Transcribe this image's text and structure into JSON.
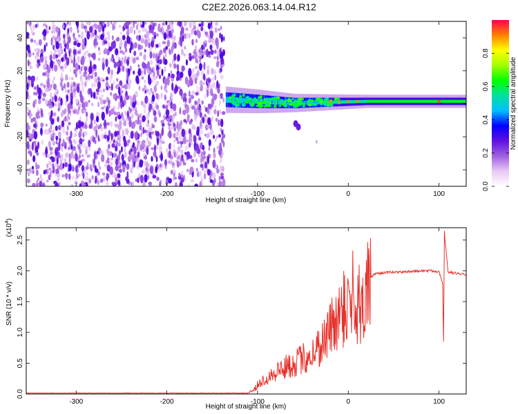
{
  "title": "C2E2.2026.063.14.04.R12",
  "chart_data": [
    {
      "type": "heatmap",
      "name": "spectrogram",
      "title": "C2E2.2026.063.14.04.R12",
      "xlabel": "Height of straight line (km)",
      "ylabel": "Frequency (Hz)",
      "xlim": [
        -355,
        130
      ],
      "ylim": [
        -50,
        50
      ],
      "xticks": [
        -300,
        -200,
        -100,
        0,
        100
      ],
      "yticks": [
        -40,
        -20,
        0,
        20,
        40
      ],
      "noise_region_x": [
        -355,
        -137
      ],
      "signal_band": [
        {
          "x": -135,
          "center_hz": 2.5,
          "halfwidth_hz": 5
        },
        {
          "x": -100,
          "center_hz": 1.5,
          "halfwidth_hz": 4.5
        },
        {
          "x": -60,
          "center_hz": 0.5,
          "halfwidth_hz": 3.5
        },
        {
          "x": -20,
          "center_hz": 1.0,
          "halfwidth_hz": 3
        },
        {
          "x": 20,
          "center_hz": 1.5,
          "halfwidth_hz": 2.5
        },
        {
          "x": 130,
          "center_hz": 1.5,
          "halfwidth_hz": 2.5
        }
      ],
      "peaks": [
        {
          "x": -20,
          "f": 1.5,
          "amp": 0.9
        },
        {
          "x": -10,
          "f": 1.5,
          "amp": 0.9
        },
        {
          "x": 0,
          "f": 1.5,
          "amp": 0.9
        },
        {
          "x": 10,
          "f": 1.5,
          "amp": 0.9
        },
        {
          "x": 100,
          "f": 1.5,
          "amp": 0.95
        }
      ],
      "side_feature": [
        {
          "x": -58,
          "f": -12
        },
        {
          "x": -55,
          "f": -14
        },
        {
          "x": -35,
          "f": -23
        }
      ]
    },
    {
      "type": "colorbar",
      "name": "colorbar",
      "label": "Normalized spectral amplitude",
      "ylim": [
        0,
        1
      ],
      "ticks": [
        0.0,
        0.2,
        0.4,
        0.6,
        0.8
      ],
      "tick_labels": [
        "0.0",
        "0.2",
        "0.4",
        "0.6",
        "0.8"
      ],
      "stops": [
        "#ffffff",
        "#e8c8f5",
        "#a060e0",
        "#6010e0",
        "#0000ff",
        "#00c0ff",
        "#00e0a0",
        "#00ff00",
        "#a0ff00",
        "#ffff00",
        "#ff8000",
        "#ff0050"
      ]
    },
    {
      "type": "line",
      "name": "snr",
      "xlabel": "Height of straight line (km)",
      "ylabel": "SNR (10 * v/v)",
      "scale_label": "(x10",
      "scale_exponent": "4",
      "scale_suffix": ")",
      "xlim": [
        -355,
        130
      ],
      "ylim": [
        0,
        2.7
      ],
      "xticks": [
        -300,
        -200,
        -100,
        0,
        100
      ],
      "yticks": [
        0.0,
        0.5,
        1.0,
        1.5,
        2.0,
        2.5
      ],
      "ytick_labels": [
        "0.0",
        "0.5",
        "1.0",
        "1.5",
        "2.0",
        "2.5"
      ],
      "color": "#e8302a",
      "series": [
        {
          "name": "SNR",
          "x": [
            -355,
            -120,
            -105,
            -100,
            -90,
            -80,
            -70,
            -60,
            -50,
            -40,
            -30,
            -20,
            -15,
            -10,
            -5,
            0,
            5,
            10,
            15,
            20,
            25,
            30,
            40,
            50,
            60,
            70,
            80,
            90,
            100,
            104,
            105,
            106,
            110,
            120,
            130
          ],
          "y": [
            0.0,
            0.0,
            0.05,
            0.15,
            0.28,
            0.38,
            0.45,
            0.52,
            0.6,
            0.68,
            0.85,
            1.1,
            1.25,
            1.35,
            1.45,
            1.55,
            1.5,
            1.45,
            1.55,
            1.75,
            1.9,
            1.95,
            1.97,
            1.98,
            1.98,
            1.99,
            2.0,
            2.0,
            1.99,
            1.8,
            0.85,
            2.6,
            1.98,
            1.96,
            1.93
          ]
        }
      ],
      "spikes": [
        {
          "x": 5,
          "y": 2.33
        },
        {
          "x": 12,
          "y": 2.1
        },
        {
          "x": -5,
          "y": 2.0
        },
        {
          "x": 106,
          "y": 2.65
        },
        {
          "x": 105,
          "y": 0.85
        }
      ]
    }
  ]
}
